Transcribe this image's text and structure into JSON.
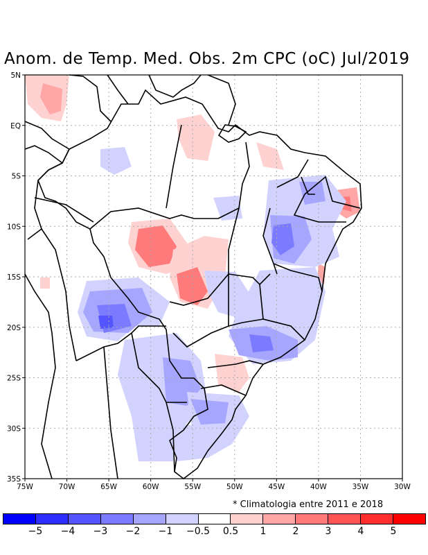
{
  "title": "Anom. de Temp. Med. Obs. 2m CPC (oC) Jul/2019",
  "map": {
    "lat_ticks": [
      "5N",
      "EQ",
      "5S",
      "10S",
      "15S",
      "20S",
      "25S",
      "30S",
      "35S"
    ],
    "lon_ticks": [
      "75W",
      "70W",
      "65W",
      "60W",
      "55W",
      "50W",
      "45W",
      "40W",
      "35W",
      "30W"
    ],
    "lon_range": [
      -75,
      -30
    ],
    "lat_range": [
      -35,
      5
    ]
  },
  "note": "* Climatologia entre 2011 e 2018",
  "colorbar": {
    "colors": [
      "#0000ff",
      "#2e2eff",
      "#5555ff",
      "#7b7bff",
      "#a6a6ff",
      "#d2d2ff",
      "#ffffff",
      "#ffd2d2",
      "#ffa6a6",
      "#ff7b7b",
      "#ff5555",
      "#ff2e2e",
      "#ff0000"
    ],
    "labels": [
      "−5",
      "−4",
      "−3",
      "−2",
      "−1",
      "−0.5",
      "0.5",
      "1",
      "2",
      "3",
      "4",
      "5"
    ]
  }
}
